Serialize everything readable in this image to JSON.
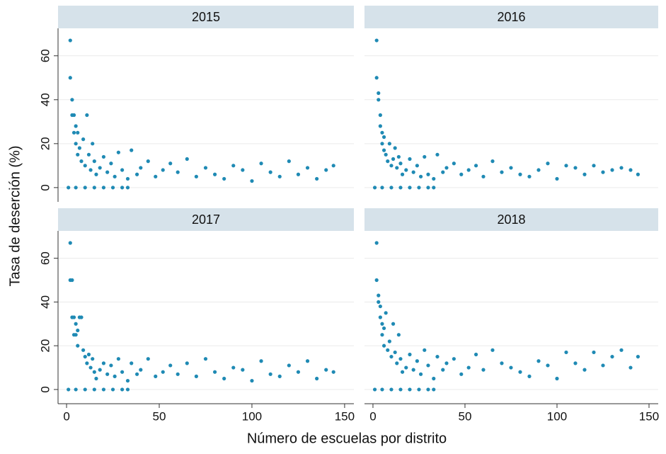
{
  "chart_data": {
    "type": "scatter",
    "x_label": "Número de escuelas por distrito",
    "y_label": "Tasa de deserción (%)",
    "xlim": [
      -4.6,
      155
    ],
    "ylim": [
      -6.5,
      72.5
    ],
    "xticks": [
      0,
      50,
      100,
      150
    ],
    "yticks": [
      0,
      20,
      40,
      60
    ],
    "grid": true,
    "color": "#1f8ab4",
    "panels": [
      {
        "title": "2015",
        "x": [
          2,
          2,
          3,
          3,
          4,
          4,
          5,
          5,
          6,
          6,
          7,
          8,
          9,
          10,
          11,
          12,
          13,
          14,
          15,
          16,
          18,
          20,
          22,
          24,
          26,
          28,
          30,
          33,
          35,
          38,
          40,
          44,
          48,
          52,
          56,
          60,
          65,
          70,
          75,
          80,
          85,
          90,
          95,
          100,
          105,
          110,
          115,
          120,
          125,
          130,
          135,
          140,
          144,
          1,
          5,
          10,
          15,
          20,
          25,
          30,
          33
        ],
        "values": [
          67,
          50,
          40,
          33,
          33,
          25,
          28,
          20,
          25,
          15,
          18,
          12,
          22,
          10,
          33,
          15,
          8,
          20,
          12,
          6,
          9,
          14,
          7,
          11,
          5,
          16,
          8,
          4,
          17,
          6,
          9,
          12,
          5,
          8,
          11,
          7,
          13,
          5,
          9,
          6,
          4,
          10,
          8,
          3,
          11,
          7,
          5,
          12,
          6,
          9,
          4,
          8,
          10,
          0,
          0,
          0,
          0,
          0,
          0,
          0,
          0
        ]
      },
      {
        "title": "2016",
        "x": [
          2,
          2,
          3,
          3,
          4,
          4,
          5,
          5,
          6,
          6,
          7,
          8,
          9,
          10,
          11,
          12,
          13,
          14,
          15,
          16,
          18,
          20,
          22,
          24,
          26,
          28,
          30,
          33,
          35,
          38,
          40,
          44,
          48,
          52,
          56,
          60,
          65,
          70,
          75,
          80,
          85,
          90,
          95,
          100,
          105,
          110,
          115,
          120,
          125,
          130,
          135,
          140,
          144,
          1,
          5,
          10,
          15,
          20,
          25,
          30,
          33
        ],
        "values": [
          67,
          50,
          43,
          40,
          33,
          28,
          25,
          20,
          23,
          17,
          15,
          12,
          20,
          10,
          13,
          18,
          9,
          14,
          11,
          6,
          8,
          13,
          7,
          10,
          5,
          14,
          6,
          4,
          15,
          7,
          9,
          11,
          6,
          8,
          10,
          5,
          12,
          7,
          9,
          6,
          5,
          8,
          11,
          4,
          10,
          9,
          6,
          10,
          7,
          8,
          9,
          8,
          6,
          0,
          0,
          0,
          0,
          0,
          0,
          0,
          0
        ]
      },
      {
        "title": "2017",
        "x": [
          2,
          2,
          3,
          3,
          4,
          4,
          5,
          5,
          6,
          6,
          7,
          8,
          9,
          10,
          11,
          12,
          13,
          14,
          15,
          16,
          18,
          20,
          22,
          24,
          26,
          28,
          30,
          33,
          35,
          38,
          40,
          44,
          48,
          52,
          56,
          60,
          65,
          70,
          75,
          80,
          85,
          90,
          95,
          100,
          105,
          110,
          115,
          120,
          125,
          130,
          135,
          140,
          144,
          1,
          5,
          10,
          15,
          20,
          25,
          30,
          33
        ],
        "values": [
          67,
          50,
          33,
          50,
          33,
          25,
          30,
          25,
          27,
          20,
          33,
          33,
          18,
          15,
          12,
          16,
          10,
          14,
          8,
          5,
          9,
          12,
          7,
          11,
          6,
          14,
          8,
          4,
          12,
          7,
          9,
          14,
          6,
          8,
          11,
          7,
          12,
          6,
          14,
          8,
          5,
          10,
          9,
          4,
          13,
          7,
          6,
          11,
          8,
          13,
          5,
          9,
          8,
          0,
          0,
          0,
          0,
          0,
          0,
          0,
          0
        ]
      },
      {
        "title": "2018",
        "x": [
          2,
          2,
          3,
          3,
          4,
          4,
          5,
          5,
          6,
          6,
          7,
          8,
          9,
          10,
          11,
          12,
          13,
          14,
          15,
          16,
          18,
          20,
          22,
          24,
          26,
          28,
          30,
          33,
          35,
          38,
          40,
          44,
          48,
          52,
          56,
          60,
          65,
          70,
          75,
          80,
          85,
          90,
          95,
          100,
          105,
          110,
          115,
          120,
          125,
          130,
          135,
          140,
          144,
          1,
          5,
          10,
          15,
          20,
          25,
          30,
          33
        ],
        "values": [
          67,
          50,
          43,
          40,
          38,
          33,
          30,
          25,
          28,
          20,
          35,
          18,
          22,
          15,
          30,
          17,
          12,
          25,
          14,
          8,
          10,
          16,
          9,
          13,
          7,
          18,
          11,
          5,
          15,
          9,
          12,
          14,
          7,
          10,
          16,
          9,
          18,
          12,
          10,
          8,
          6,
          13,
          11,
          5,
          17,
          12,
          9,
          17,
          11,
          15,
          18,
          10,
          15,
          0,
          0,
          0,
          0,
          0,
          0,
          0,
          0
        ]
      }
    ]
  }
}
